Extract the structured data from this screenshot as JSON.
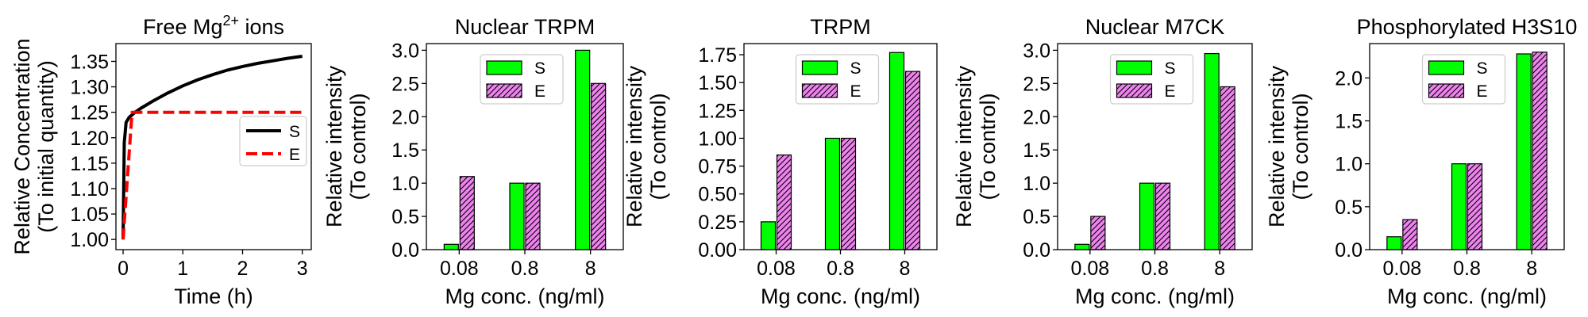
{
  "chart_data": [
    {
      "type": "line",
      "title": "Free Mg",
      "title_sup": "2+",
      "title_suffix": " ions",
      "xlabel": "Time (h)",
      "ylabel": [
        "Relative Concentration",
        "(To initial quantity)"
      ],
      "xlim": [
        -0.12,
        3.15
      ],
      "ylim": [
        0.98,
        1.385
      ],
      "xticks": [
        0,
        1,
        2,
        3
      ],
      "yticks": [
        1.0,
        1.05,
        1.1,
        1.15,
        1.2,
        1.25,
        1.3,
        1.35
      ],
      "ytick_labels": [
        "1.00",
        "1.05",
        "1.10",
        "1.15",
        "1.20",
        "1.25",
        "1.30",
        "1.35"
      ],
      "legend_position": "center-right",
      "series": [
        {
          "name": "S",
          "color": "#000000",
          "style": "solid",
          "x": [
            0,
            0.02,
            0.05,
            0.1,
            0.2,
            0.3,
            0.5,
            0.75,
            1.0,
            1.25,
            1.5,
            1.75,
            2.0,
            2.25,
            2.5,
            2.75,
            3.0
          ],
          "y": [
            1.0,
            1.19,
            1.23,
            1.24,
            1.25,
            1.258,
            1.272,
            1.288,
            1.302,
            1.314,
            1.324,
            1.333,
            1.34,
            1.346,
            1.351,
            1.356,
            1.36
          ]
        },
        {
          "name": "E",
          "color": "#ff0000",
          "style": "dashed",
          "x": [
            0,
            0.15,
            3.0
          ],
          "y": [
            1.0,
            1.25,
            1.25
          ]
        }
      ]
    },
    {
      "type": "bar",
      "title": "Nuclear TRPM",
      "xlabel": "Mg conc. (ng/ml)",
      "ylabel": [
        "Relative intensity",
        "(To control)"
      ],
      "categories": [
        "0.08",
        "0.8",
        "8"
      ],
      "ylim": [
        0,
        3.1
      ],
      "yticks": [
        0,
        0.5,
        1.0,
        1.5,
        2.0,
        2.5,
        3.0
      ],
      "ytick_labels": [
        "0.0",
        "0.5",
        "1.0",
        "1.5",
        "2.0",
        "2.5",
        "3.0"
      ],
      "legend_position": "upper-center",
      "series": [
        {
          "name": "S",
          "color": "#00ff00",
          "hatch": false,
          "values": [
            0.08,
            1.0,
            3.0
          ]
        },
        {
          "name": "E",
          "color": "#ee82ee",
          "hatch": true,
          "values": [
            1.1,
            1.0,
            2.5
          ]
        }
      ]
    },
    {
      "type": "bar",
      "title": "TRPM",
      "xlabel": "Mg conc. (ng/ml)",
      "ylabel": [
        "Relative intensity",
        "(To control)"
      ],
      "categories": [
        "0.08",
        "0.8",
        "8"
      ],
      "ylim": [
        0,
        1.85
      ],
      "yticks": [
        0,
        0.25,
        0.5,
        0.75,
        1.0,
        1.25,
        1.5,
        1.75
      ],
      "ytick_labels": [
        "0.00",
        "0.25",
        "0.50",
        "0.75",
        "1.00",
        "1.25",
        "1.50",
        "1.75"
      ],
      "legend_position": "upper-center",
      "series": [
        {
          "name": "S",
          "color": "#00ff00",
          "hatch": false,
          "values": [
            0.25,
            1.0,
            1.77
          ]
        },
        {
          "name": "E",
          "color": "#ee82ee",
          "hatch": true,
          "values": [
            0.85,
            1.0,
            1.6
          ]
        }
      ]
    },
    {
      "type": "bar",
      "title": "Nuclear M7CK",
      "xlabel": "Mg conc. (ng/ml)",
      "ylabel": [
        "Relative intensity",
        "(To control)"
      ],
      "categories": [
        "0.08",
        "0.8",
        "8"
      ],
      "ylim": [
        0,
        3.1
      ],
      "yticks": [
        0,
        0.5,
        1.0,
        1.5,
        2.0,
        2.5,
        3.0
      ],
      "ytick_labels": [
        "0.0",
        "0.5",
        "1.0",
        "1.5",
        "2.0",
        "2.5",
        "3.0"
      ],
      "legend_position": "upper-center",
      "series": [
        {
          "name": "S",
          "color": "#00ff00",
          "hatch": false,
          "values": [
            0.08,
            1.0,
            2.95
          ]
        },
        {
          "name": "E",
          "color": "#ee82ee",
          "hatch": true,
          "values": [
            0.5,
            1.0,
            2.45
          ]
        }
      ]
    },
    {
      "type": "bar",
      "title": "Phosphorylated H3S10",
      "xlabel": "Mg conc. (ng/ml)",
      "ylabel": [
        "Relative intensity",
        "(To control)"
      ],
      "categories": [
        "0.08",
        "0.8",
        "8"
      ],
      "ylim": [
        0,
        2.4
      ],
      "yticks": [
        0,
        0.5,
        1.0,
        1.5,
        2.0
      ],
      "ytick_labels": [
        "0.0",
        "0.5",
        "1.0",
        "1.5",
        "2.0"
      ],
      "legend_position": "upper-center",
      "series": [
        {
          "name": "S",
          "color": "#00ff00",
          "hatch": false,
          "values": [
            0.15,
            1.0,
            2.28
          ]
        },
        {
          "name": "E",
          "color": "#ee82ee",
          "hatch": true,
          "values": [
            0.35,
            1.0,
            2.3
          ]
        }
      ]
    }
  ]
}
